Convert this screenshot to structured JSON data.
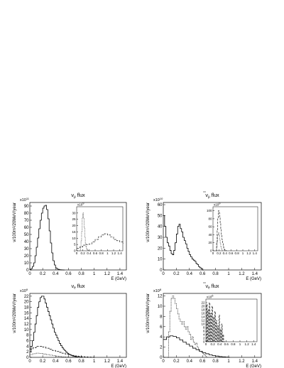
{
  "chart_data": [
    {
      "type": "line",
      "title": "ν_μ flux",
      "title_main": "ν",
      "title_sub": "μ",
      "title_tail": " flux",
      "title_bar": false,
      "xlabel": "E (GeV)",
      "ylabel": "ν/100m²/20MeV/year",
      "y_multiplier": "x10",
      "y_multiplier_exp": "11",
      "xlim": [
        0,
        1.5
      ],
      "ylim": [
        0,
        95
      ],
      "xticks": [
        "0",
        "0.2",
        "0.4",
        "0.6",
        "0.8",
        "1",
        "1.2",
        "1.4"
      ],
      "yticks": [
        "0",
        "10",
        "20",
        "30",
        "40",
        "50",
        "60",
        "70",
        "80",
        "90"
      ],
      "series": [
        {
          "style": "solid",
          "x": [
            0,
            0.02,
            0.04,
            0.06,
            0.08,
            0.1,
            0.12,
            0.14,
            0.16,
            0.18,
            0.2,
            0.22,
            0.24,
            0.26,
            0.28,
            0.3,
            0.32,
            0.34,
            0.36,
            0.38,
            0.4,
            0.42,
            0.44,
            0.46,
            0.48,
            0.5,
            0.52
          ],
          "y": [
            0.5,
            2,
            5,
            10,
            20,
            32,
            45,
            58,
            70,
            80,
            87,
            90,
            91,
            85,
            72,
            55,
            38,
            24,
            13,
            7,
            3,
            1.5,
            0.8,
            0.4,
            0.2,
            0.1,
            0
          ]
        }
      ],
      "inset": {
        "y_multiplier": "x10",
        "y_multiplier_exp": "9",
        "xlim": [
          0,
          1.5
        ],
        "ylim": [
          0,
          35
        ],
        "xticks": [
          "0",
          "0.2",
          "0.4",
          "0.6",
          "0.8",
          "1",
          "1.2",
          "1.4"
        ],
        "yticks": [
          "0",
          "5",
          "10",
          "15",
          "20",
          "25",
          "30"
        ],
        "series": [
          {
            "style": "dotted",
            "x": [
              0.1,
              0.12,
              0.14,
              0.16,
              0.18,
              0.2,
              0.22,
              0.24,
              0.26,
              0.28,
              0.3,
              0.32,
              0.34,
              0.36,
              0.38
            ],
            "y": [
              0,
              3,
              8,
              15,
              26,
              30,
              26,
              18,
              11,
              6,
              3,
              1.5,
              0.8,
              0.3,
              0
            ]
          },
          {
            "style": "dashed",
            "x": [
              0,
              0.1,
              0.2,
              0.3,
              0.4,
              0.5,
              0.6,
              0.7,
              0.8,
              0.9,
              1.0,
              1.1,
              1.2,
              1.3,
              1.4,
              1.5
            ],
            "y": [
              2,
              3,
              4.5,
              5,
              5.5,
              7,
              9,
              11,
              12.5,
              13.5,
              12.5,
              11,
              9,
              8,
              7,
              6
            ]
          }
        ]
      }
    },
    {
      "type": "line",
      "title": "ν̄_μ flux",
      "title_main": "ν",
      "title_sub": "μ",
      "title_tail": " flux",
      "title_bar": true,
      "xlabel": "E (GeV)",
      "ylabel": "ν/100m²/20MeV/year",
      "y_multiplier": "x10",
      "y_multiplier_exp": "10",
      "xlim": [
        0,
        1.5
      ],
      "ylim": [
        0,
        62
      ],
      "xticks": [
        "0",
        "0.2",
        "0.4",
        "0.6",
        "0.8",
        "1",
        "1.2",
        "1.4"
      ],
      "yticks": [
        "0",
        "10",
        "20",
        "30",
        "40",
        "50",
        "60"
      ],
      "series": [
        {
          "style": "solid",
          "x": [
            0,
            0.02,
            0.04,
            0.06,
            0.08,
            0.1,
            0.12,
            0.14,
            0.16,
            0.18,
            0.2,
            0.22,
            0.24,
            0.26,
            0.28,
            0.3,
            0.32,
            0.34,
            0.36,
            0.38,
            0.4,
            0.42,
            0.44,
            0.46,
            0.48,
            0.5,
            0.52,
            0.54,
            0.56,
            0.58,
            0.6
          ],
          "y": [
            50,
            40,
            30,
            25,
            22,
            18,
            15,
            14,
            18,
            25,
            33,
            40,
            42,
            38,
            35,
            30,
            27,
            24,
            20,
            17,
            14,
            12,
            10,
            9,
            8,
            6,
            5,
            3,
            2,
            1,
            0
          ]
        }
      ],
      "inset": {
        "y_multiplier": "x10",
        "y_multiplier_exp": "9",
        "xlim": [
          0,
          1.5
        ],
        "ylim": [
          0,
          110
        ],
        "xticks": [
          "0",
          "0.2",
          "0.4",
          "0.6",
          "0.8",
          "1",
          "1.2",
          "1.4"
        ],
        "yticks": [
          "0",
          "20",
          "40",
          "60",
          "80",
          "100"
        ],
        "series": [
          {
            "style": "dashed",
            "x": [
              0.1,
              0.12,
              0.14,
              0.16,
              0.18,
              0.2,
              0.22,
              0.24,
              0.26,
              0.28,
              0.3,
              0.32,
              0.34,
              0.36,
              0.38,
              0.4,
              0.42,
              0.44
            ],
            "y": [
              0,
              20,
              50,
              80,
              100,
              95,
              85,
              70,
              55,
              40,
              28,
              18,
              10,
              6,
              3,
              1.5,
              0.5,
              0
            ]
          },
          {
            "style": "dotted",
            "x": [
              0.1,
              0.12,
              0.14,
              0.16,
              0.18,
              0.2,
              0.22,
              0.24,
              0.26,
              0.28,
              0.3,
              0.32
            ],
            "y": [
              0,
              10,
              25,
              40,
              45,
              38,
              28,
              18,
              10,
              5,
              2,
              0
            ]
          }
        ]
      }
    },
    {
      "type": "line",
      "title": "ν_e flux",
      "title_main": "ν",
      "title_sub": "e",
      "title_tail": " flux",
      "title_bar": false,
      "xlabel": "E (GeV)",
      "ylabel": "ν/100m²/20MeV/year",
      "y_multiplier": "x10",
      "y_multiplier_exp": "9",
      "xlim": [
        0,
        1.5
      ],
      "ylim": [
        0,
        23
      ],
      "xticks": [
        "0",
        "0.2",
        "0.4",
        "0.6",
        "0.8",
        "1",
        "1.2",
        "1.4"
      ],
      "yticks": [
        "0",
        "2",
        "4",
        "6",
        "8",
        "10",
        "12",
        "14",
        "16",
        "18",
        "20",
        "22"
      ],
      "series": [
        {
          "style": "solid",
          "x": [
            0,
            0.02,
            0.04,
            0.06,
            0.08,
            0.1,
            0.12,
            0.14,
            0.16,
            0.18,
            0.2,
            0.22,
            0.24,
            0.26,
            0.28,
            0.3,
            0.32,
            0.34,
            0.36,
            0.38,
            0.4,
            0.42,
            0.44,
            0.46,
            0.48,
            0.5,
            0.52,
            0.54,
            0.56,
            0.58,
            0.6,
            0.62,
            0.64,
            0.66,
            0.68,
            0.7,
            0.72,
            0.74,
            0.76,
            0.78,
            0.8
          ],
          "y": [
            2,
            4,
            6,
            9,
            12,
            15,
            18,
            20,
            21.5,
            22,
            22,
            21,
            19.5,
            18,
            16.5,
            15,
            13.5,
            12,
            10.5,
            9,
            8,
            7,
            6,
            5,
            4.2,
            3.5,
            2.9,
            2.4,
            1.9,
            1.5,
            1.2,
            0.9,
            0.7,
            0.5,
            0.4,
            0.3,
            0.2,
            0.1,
            0.1,
            0.05,
            0
          ]
        },
        {
          "style": "dashed",
          "x": [
            0,
            0.05,
            0.1,
            0.15,
            0.2,
            0.25,
            0.3,
            0.35,
            0.4,
            0.45,
            0.5,
            0.55,
            0.6,
            0.65,
            0.7,
            0.75,
            0.8,
            0.85,
            0.9,
            0.95,
            1.0
          ],
          "y": [
            3,
            3.5,
            4,
            4,
            3.7,
            3.3,
            2.9,
            2.5,
            2.1,
            1.8,
            1.5,
            1.2,
            0.9,
            0.7,
            0.5,
            0.35,
            0.25,
            0.15,
            0.1,
            0.05,
            0
          ]
        },
        {
          "style": "dotted",
          "x": [
            0,
            0.05,
            0.1,
            0.15,
            0.2,
            0.25,
            0.3,
            0.35,
            0.4,
            0.45,
            0.5,
            0.55,
            0.6,
            0.65,
            0.7
          ],
          "y": [
            1,
            1.3,
            1.5,
            1.4,
            1.2,
            1.0,
            0.8,
            0.6,
            0.45,
            0.3,
            0.2,
            0.12,
            0.06,
            0.02,
            0
          ]
        }
      ]
    },
    {
      "type": "line",
      "title": "ν̄_e flux",
      "title_main": "ν",
      "title_sub": "e",
      "title_tail": " flux",
      "title_bar": true,
      "xlabel": "E (GeV)",
      "ylabel": "ν/100m²/20MeV/year",
      "y_multiplier": "x10",
      "y_multiplier_exp": "8",
      "xlim": [
        0,
        1.5
      ],
      "ylim": [
        0,
        12.5
      ],
      "xticks": [
        "0",
        "0.2",
        "0.4",
        "0.6",
        "0.8",
        "1",
        "1.2",
        "1.4"
      ],
      "yticks": [
        "0",
        "2",
        "4",
        "6",
        "8",
        "10",
        "12"
      ],
      "series": [
        {
          "style": "dotted",
          "x": [
            0.06,
            0.08,
            0.1,
            0.12,
            0.14,
            0.16,
            0.18,
            0.2,
            0.22,
            0.24,
            0.26,
            0.28,
            0.3,
            0.32,
            0.34,
            0.36,
            0.38,
            0.4,
            0.42,
            0.44,
            0.46,
            0.48,
            0.5,
            0.52,
            0.54,
            0.56,
            0.58,
            0.6,
            0.62,
            0.64,
            0.66
          ],
          "y": [
            0,
            5,
            9,
            11.5,
            12,
            11.5,
            10.5,
            9.5,
            8.5,
            7.5,
            7,
            6.5,
            7,
            6,
            5.5,
            6,
            5,
            4.5,
            3.5,
            4,
            3,
            2.5,
            2.8,
            2,
            1.5,
            1.2,
            1,
            0.8,
            0.5,
            0.3,
            0
          ]
        },
        {
          "style": "solid",
          "x": [
            0,
            0.05,
            0.1,
            0.15,
            0.2,
            0.25,
            0.3,
            0.35,
            0.4,
            0.45,
            0.5,
            0.55,
            0.6,
            0.65,
            0.7,
            0.75,
            0.8,
            0.85,
            0.9,
            0.95,
            1.0
          ],
          "y": [
            3.5,
            4,
            4.2,
            4.1,
            3.8,
            3.4,
            3.0,
            2.6,
            2.2,
            1.8,
            1.5,
            1.2,
            0.9,
            0.7,
            0.5,
            0.35,
            0.25,
            0.15,
            0.1,
            0.05,
            0
          ]
        }
      ],
      "inset": {
        "y_multiplier": "x10",
        "y_multiplier_exp": "6",
        "xlim": [
          0,
          1.5
        ],
        "ylim": [
          0,
          24
        ],
        "xticks": [
          "0",
          "0.2",
          "0.4",
          "0.6",
          "0.8",
          "1",
          "1.2",
          "1.4"
        ],
        "yticks": [
          "0",
          "2",
          "4",
          "6",
          "8",
          "10",
          "12",
          "14",
          "16",
          "18",
          "20",
          "22"
        ],
        "series": [
          {
            "style": "dashed",
            "x": [
              0,
              0.02,
              0.04,
              0.06,
              0.08,
              0.1,
              0.12,
              0.14,
              0.16,
              0.18,
              0.2,
              0.22,
              0.24,
              0.26,
              0.28,
              0.3,
              0.32,
              0.34,
              0.36,
              0.38,
              0.4,
              0.42,
              0.44,
              0.46,
              0.48,
              0.5,
              0.52,
              0.54
            ],
            "y": [
              0,
              21,
              0,
              18,
              0,
              22,
              0,
              16,
              0,
              20,
              0,
              14,
              0,
              17,
              0,
              12,
              0,
              9,
              0,
              15,
              0,
              7,
              0,
              10,
              0,
              4,
              0,
              0
            ]
          }
        ]
      }
    }
  ]
}
